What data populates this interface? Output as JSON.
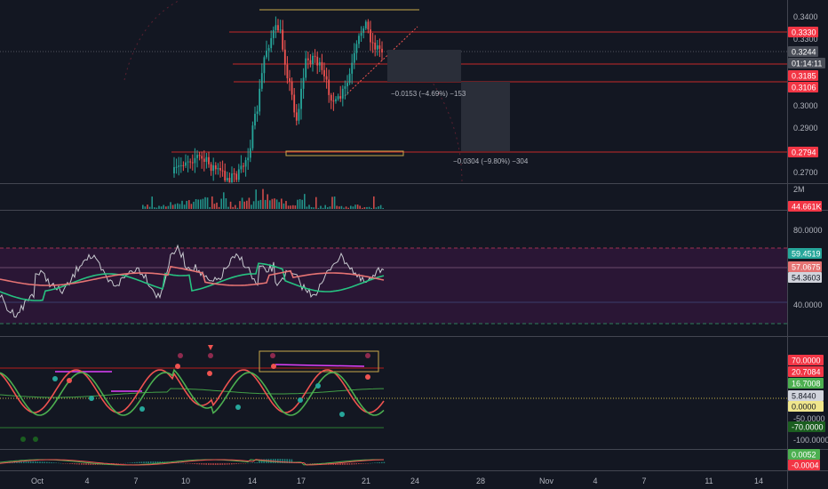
{
  "price_pane": {
    "ticks": [
      "0.3400",
      "0.3300",
      "0.3000",
      "0.2900",
      "0.2700"
    ],
    "badges": [
      {
        "label": "0.3330",
        "bg": "#f23645",
        "fg": "#ffffff"
      },
      {
        "label": "0.3244",
        "bg": "#4a4e58",
        "fg": "#ffffff"
      },
      {
        "label": "01:14:11",
        "bg": "#4a4e58",
        "fg": "#ffffff"
      },
      {
        "label": "0.3185",
        "bg": "#f23645",
        "fg": "#ffffff"
      },
      {
        "label": "0.3106",
        "bg": "#f23645",
        "fg": "#ffffff"
      },
      {
        "label": "0.2794",
        "bg": "#f23645",
        "fg": "#ffffff"
      }
    ],
    "measure_1": "−0.0153 (−4.69%) −153",
    "measure_2": "−0.0304 (−9.80%) −304"
  },
  "volume_pane": {
    "scale_label": "2M",
    "badge": {
      "label": "44.661K",
      "bg": "#f23645",
      "fg": "#ffffff"
    }
  },
  "rsi_pane": {
    "ticks": [
      "80.0000",
      "40.0000"
    ],
    "badges": [
      {
        "label": "59.4519",
        "bg": "#26a69a",
        "fg": "#ffffff"
      },
      {
        "label": "57.0675",
        "bg": "#e57373",
        "fg": "#ffffff"
      },
      {
        "label": "54.3603",
        "bg": "#d1d4dc",
        "fg": "#131722"
      }
    ]
  },
  "osc_pane": {
    "ticks": [
      "-50.0000",
      "-100.0000"
    ],
    "badges": [
      {
        "label": "70.0000",
        "bg": "#f23645",
        "fg": "#ffffff"
      },
      {
        "label": "20.7084",
        "bg": "#f23645",
        "fg": "#ffffff"
      },
      {
        "label": "16.7008",
        "bg": "#4caf50",
        "fg": "#ffffff"
      },
      {
        "label": "5.8440",
        "bg": "#d1d4dc",
        "fg": "#131722"
      },
      {
        "label": "0.0000",
        "bg": "#f0e68c",
        "fg": "#131722"
      },
      {
        "label": "-70.0000",
        "bg": "#1b5e20",
        "fg": "#ffffff"
      }
    ]
  },
  "macd_pane": {
    "badges": [
      {
        "label": "0.0052",
        "bg": "#4caf50",
        "fg": "#ffffff"
      },
      {
        "label": "-0.0004",
        "bg": "#f23645",
        "fg": "#ffffff"
      }
    ]
  },
  "time_axis": {
    "labels": [
      "Oct",
      "4",
      "7",
      "10",
      "14",
      "17",
      "21",
      "24",
      "28",
      "Nov",
      "4",
      "7",
      "11",
      "14"
    ]
  },
  "colors": {
    "background": "#131722",
    "up": "#26a69a",
    "down": "#ef5350",
    "level_line": "#c62828",
    "rsi_band": "#2a1635"
  }
}
